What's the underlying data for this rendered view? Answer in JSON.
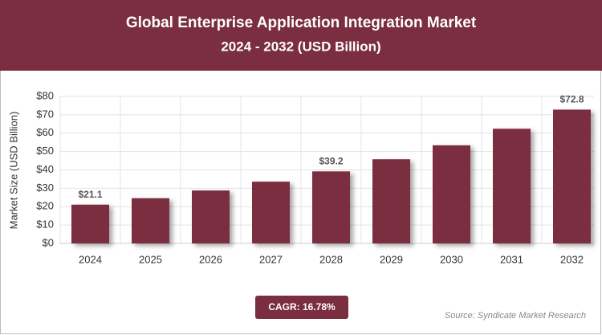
{
  "chart_data": {
    "type": "bar",
    "title": "Global Enterprise Application Integration Market",
    "subtitle": "2024 - 2032 (USD Billion)",
    "y_label": "Market Size (USD Billion)",
    "categories": [
      "2024",
      "2025",
      "2026",
      "2027",
      "2028",
      "2029",
      "2030",
      "2031",
      "2032"
    ],
    "values": [
      21.1,
      24.6,
      28.8,
      33.6,
      39.2,
      45.8,
      53.4,
      62.4,
      72.8
    ],
    "value_labels": [
      "$21.1",
      null,
      null,
      null,
      "$39.2",
      null,
      null,
      null,
      "$72.8"
    ],
    "color": "#7a2e3f",
    "ylim": [
      0,
      80
    ],
    "yticks": [
      {
        "value": 0,
        "label": "$0"
      },
      {
        "value": 10,
        "label": "$10"
      },
      {
        "value": 20,
        "label": "$20"
      },
      {
        "value": 30,
        "label": "$30"
      },
      {
        "value": 40,
        "label": "$40"
      },
      {
        "value": 50,
        "label": "$50"
      },
      {
        "value": 60,
        "label": "$60"
      },
      {
        "value": 70,
        "label": "$70"
      },
      {
        "value": 80,
        "label": "$80"
      }
    ],
    "grid": true,
    "cagr": "CAGR: 16.78%",
    "source": "Source: Syndicate Market Research"
  }
}
